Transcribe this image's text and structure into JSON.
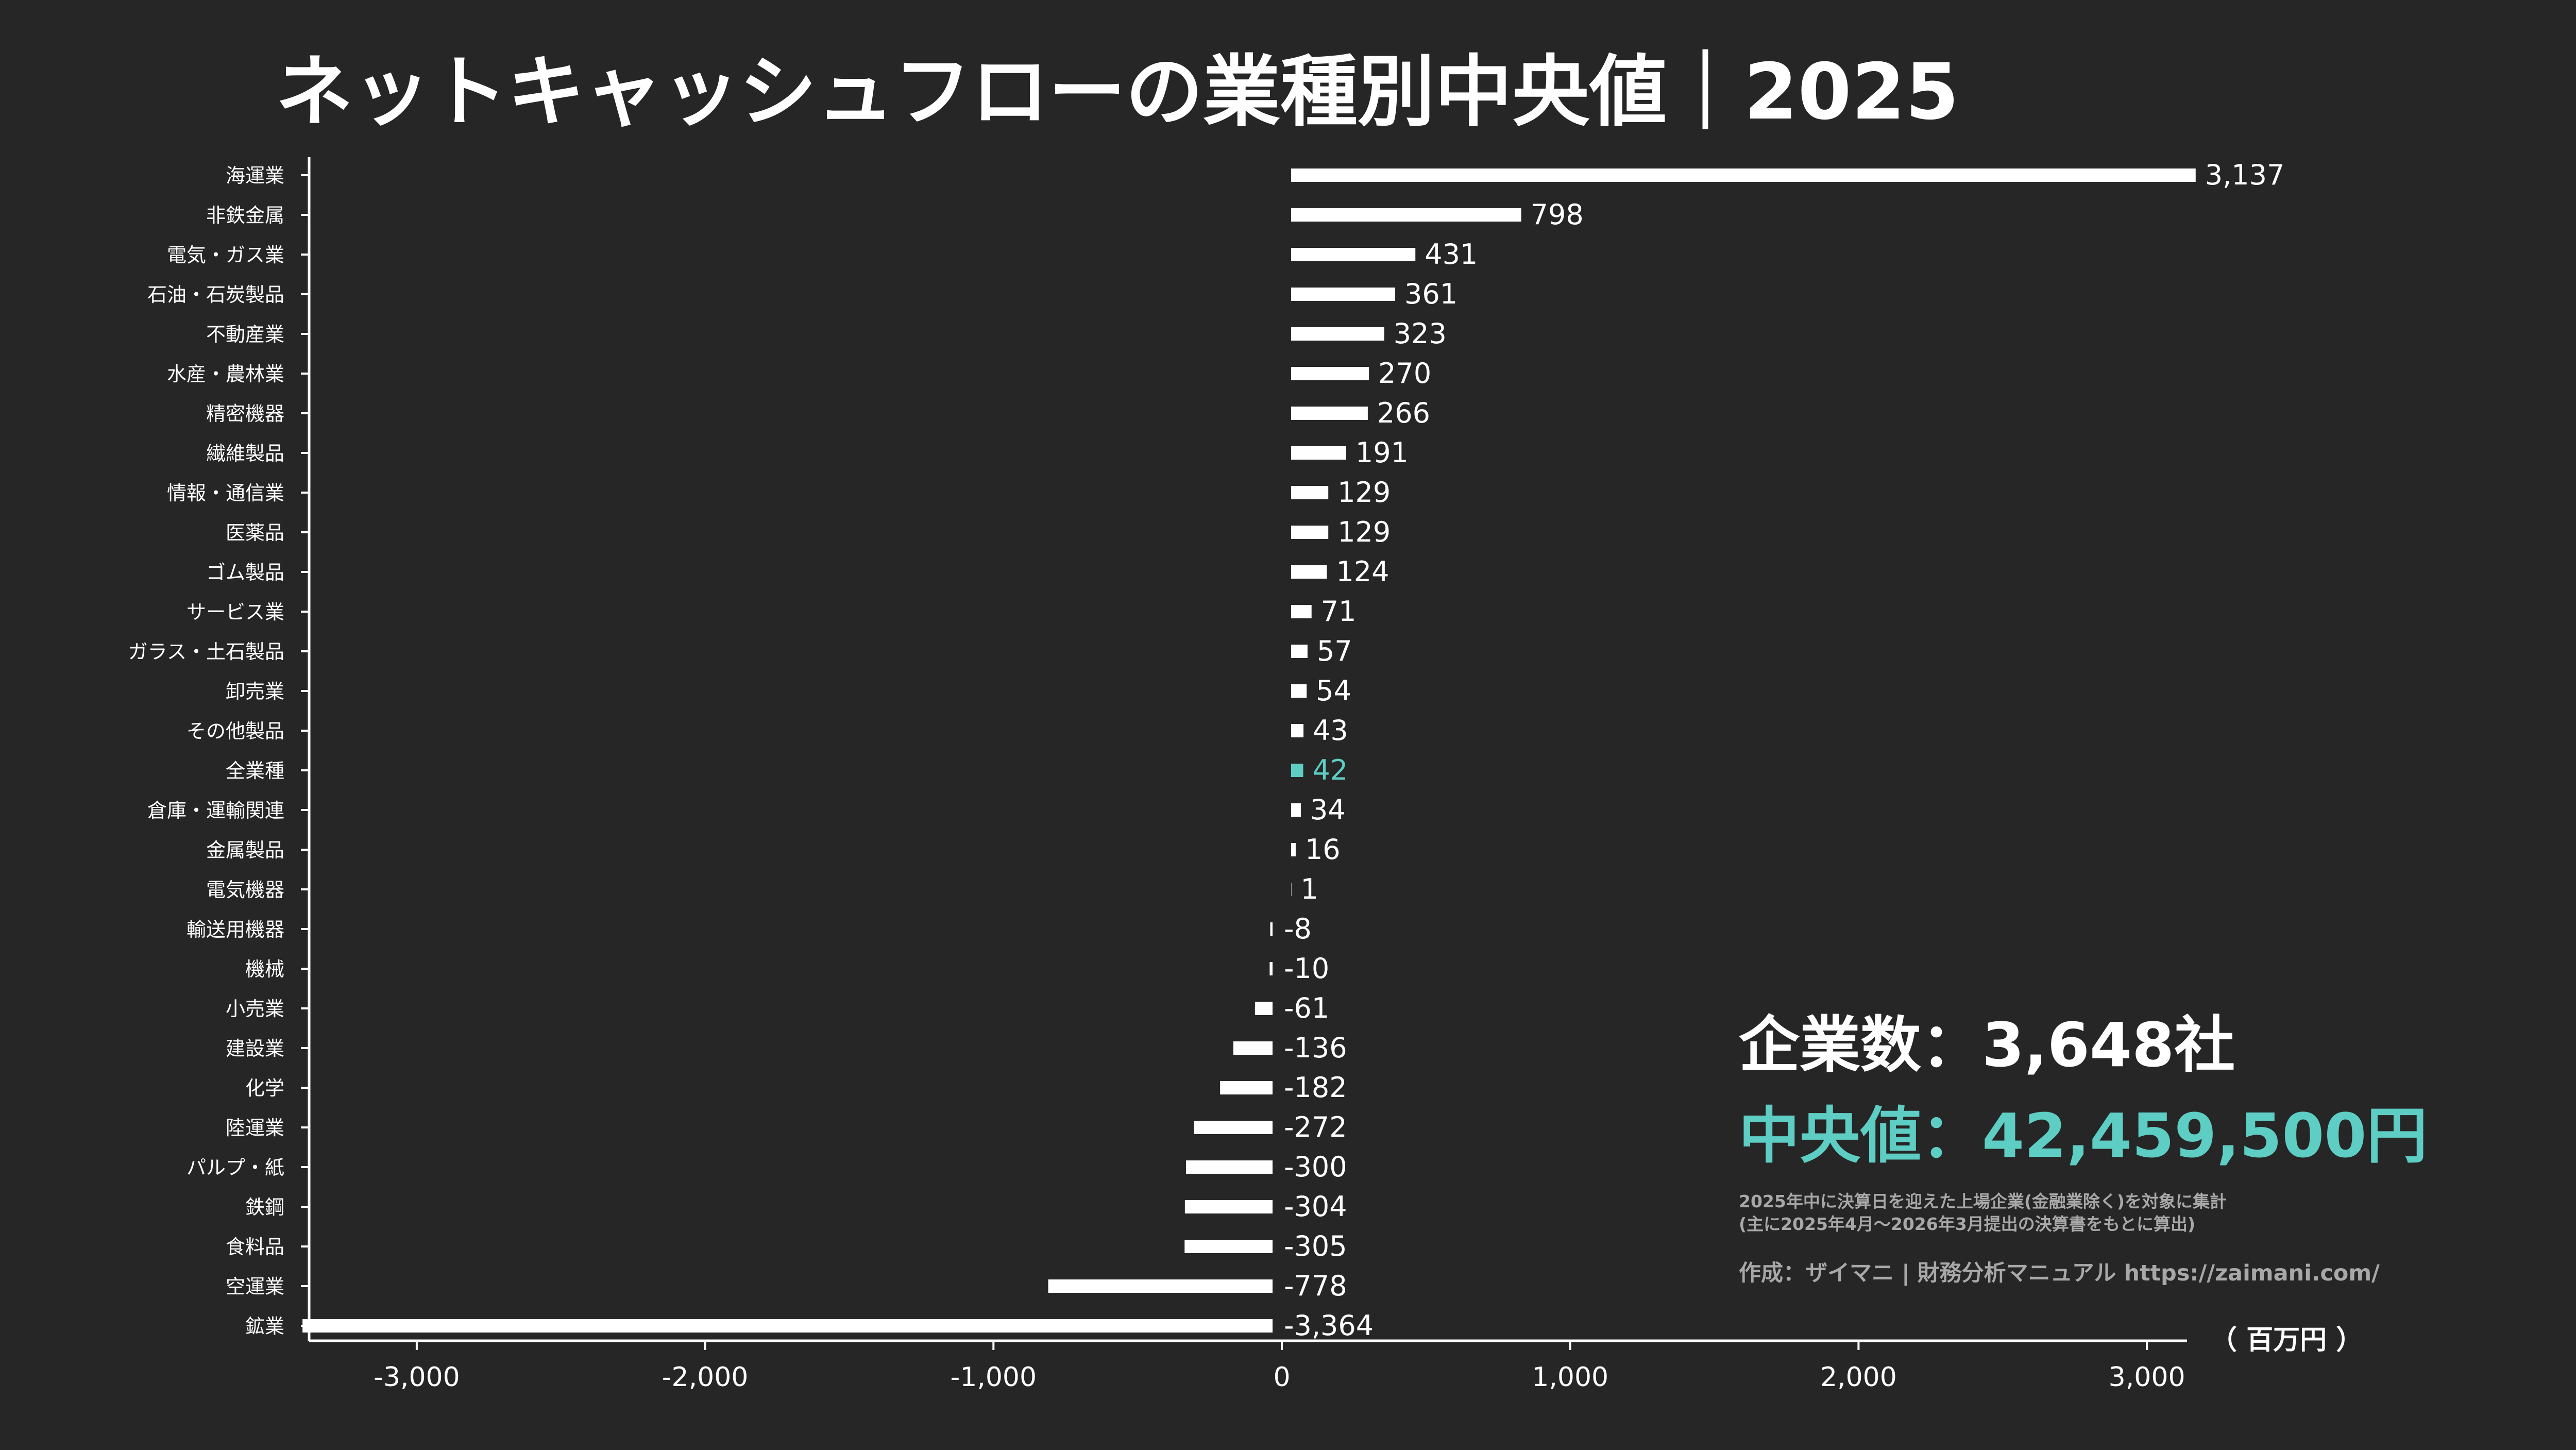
{
  "title": "ネットキャッシュフローの業種別中央値｜2025",
  "unit_label": "（ 百万円 ）",
  "colors": {
    "background": "#262626",
    "bar": "#ffffff",
    "highlight": "#5ecdc4",
    "note": "#a8a8a8"
  },
  "stats": {
    "company_count": "企業数：3,648社",
    "median": "中央値：42,459,500円"
  },
  "notes": {
    "line1": "2025年中に決算日を迎えた上場企業(金融業除く)を対象に集計",
    "line2": "(主に2025年4月～2026年3月提出の決算書をもとに算出)",
    "credit": "作成：ザイマニ | 財務分析マニュアル https://zaimani.com/"
  },
  "chart_data": {
    "type": "bar",
    "orientation": "horizontal",
    "title": "ネットキャッシュフローの業種別中央値｜2025",
    "unit": "（ 百万円 ）",
    "highlight_category": "全業種",
    "categories": [
      "海運業",
      "非鉄金属",
      "電気・ガス業",
      "石油・石炭製品",
      "不動産業",
      "水産・農林業",
      "精密機器",
      "繊維製品",
      "情報・通信業",
      "医薬品",
      "ゴム製品",
      "サービス業",
      "ガラス・土石製品",
      "卸売業",
      "その他製品",
      "全業種",
      "倉庫・運輸関連",
      "金属製品",
      "電気機器",
      "輸送用機器",
      "機械",
      "小売業",
      "建設業",
      "化学",
      "陸運業",
      "パルプ・紙",
      "鉄鋼",
      "食料品",
      "空運業",
      "鉱業"
    ],
    "values": [
      3137,
      798,
      431,
      361,
      323,
      270,
      266,
      191,
      129,
      129,
      124,
      71,
      57,
      54,
      43,
      42,
      34,
      16,
      1,
      -8,
      -10,
      -61,
      -136,
      -182,
      -272,
      -300,
      -304,
      -305,
      -778,
      -3364
    ],
    "value_labels": [
      "3,137",
      "798",
      "431",
      "361",
      "323",
      "270",
      "266",
      "191",
      "129",
      "129",
      "124",
      "71",
      "57",
      "54",
      "43",
      "42",
      "34",
      "16",
      "1",
      "-8",
      "-10",
      "-61",
      "-136",
      "-182",
      "-272",
      "-300",
      "-304",
      "-305",
      "-778",
      "-3,364"
    ],
    "xlim": [
      -3400,
      3200
    ],
    "xticks": [
      -3000,
      -2000,
      -1000,
      0,
      1000,
      2000,
      3000
    ],
    "xtick_labels": [
      "-3,000",
      "-2,000",
      "-1,000",
      "0",
      "1,000",
      "2,000",
      "3,000"
    ],
    "grid": false,
    "legend": "none"
  }
}
